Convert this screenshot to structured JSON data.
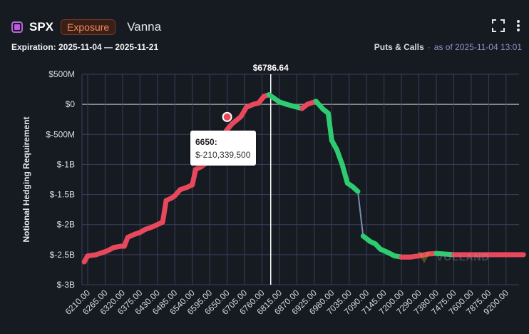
{
  "header": {
    "symbol": "SPX",
    "badge": "Exposure",
    "metric": "Vanna",
    "expiration": "Expiration: 2025-11-04 — 2025-11-21",
    "data_type": "Puts & Calls",
    "as_of": "as of 2025-11-04 13:01",
    "symbol_color": "#c055e8"
  },
  "icons": {
    "fullscreen": "fullscreen-icon",
    "menu": "more-vertical-icon"
  },
  "watermark": "VOLLAND",
  "tooltip": {
    "x_label": "6650:",
    "y_label": "$-210,339,500"
  },
  "chart_data": {
    "type": "line",
    "ylabel": "Notional Hedging Requirement",
    "xlabel": "",
    "ylim": [
      -3000000000,
      500000000
    ],
    "y_ticks": [
      500000000,
      0,
      -500000000,
      -1000000000,
      -1500000000,
      -2000000000,
      -2500000000,
      -3000000000
    ],
    "y_tick_labels": [
      "$500M",
      "$0",
      "$-500M",
      "$-1B",
      "$-1.5B",
      "$-2B",
      "$-2.5B",
      "$-3B"
    ],
    "x_tick_labels": [
      "6210.00",
      "6265.00",
      "6320.00",
      "6375.00",
      "6430.00",
      "6485.00",
      "6540.00",
      "6595.00",
      "6650.00",
      "6705.00",
      "6760.00",
      "6815.00",
      "6870.00",
      "6925.00",
      "6980.00",
      "7035.00",
      "7090.00",
      "7145.00",
      "7200.00",
      "7290.00",
      "7380.00",
      "7475.00",
      "7600.00",
      "7875.00",
      "9200.00"
    ],
    "spot": {
      "label": "$6786.64",
      "index": 10.5
    },
    "highlight": {
      "index": 8,
      "value": -210339500
    },
    "series": [
      {
        "name": "Vanna",
        "points": [
          [
            -0.2,
            -2620000000
          ],
          [
            0,
            -2520000000
          ],
          [
            0.5,
            -2500000000
          ],
          [
            0.9,
            -2460000000
          ],
          [
            1.1,
            -2440000000
          ],
          [
            1.5,
            -2380000000
          ],
          [
            1.9,
            -2360000000
          ],
          [
            2.1,
            -2360000000
          ],
          [
            2.3,
            -2210000000
          ],
          [
            2.7,
            -2160000000
          ],
          [
            3.0,
            -2130000000
          ],
          [
            3.3,
            -2080000000
          ],
          [
            3.7,
            -2040000000
          ],
          [
            4.0,
            -2000000000
          ],
          [
            4.3,
            -1960000000
          ],
          [
            4.5,
            -1600000000
          ],
          [
            4.8,
            -1560000000
          ],
          [
            5.0,
            -1520000000
          ],
          [
            5.3,
            -1420000000
          ],
          [
            5.7,
            -1380000000
          ],
          [
            6.0,
            -1340000000
          ],
          [
            6.2,
            -1080000000
          ],
          [
            6.5,
            -1040000000
          ],
          [
            6.8,
            -980000000
          ],
          [
            7.1,
            -700000000
          ],
          [
            7.4,
            -640000000
          ],
          [
            7.7,
            -550000000
          ],
          [
            8.0,
            -420000000
          ],
          [
            8.3,
            -320000000
          ],
          [
            8.6,
            -250000000
          ],
          [
            8.8,
            -200000000
          ],
          [
            9.1,
            -50000000
          ],
          [
            9.5,
            0
          ],
          [
            9.8,
            20000000
          ],
          [
            10.1,
            130000000
          ],
          [
            10.4,
            160000000
          ],
          [
            10.7,
            100000000
          ],
          [
            11.0,
            40000000
          ],
          [
            11.4,
            0
          ],
          [
            11.9,
            -40000000
          ],
          [
            12.3,
            -70000000
          ],
          [
            12.6,
            0
          ],
          [
            13.1,
            50000000
          ],
          [
            13.5,
            -80000000
          ],
          [
            13.8,
            -150000000
          ],
          [
            14.0,
            -600000000
          ],
          [
            14.3,
            -760000000
          ],
          [
            14.6,
            -1000000000
          ],
          [
            14.9,
            -1310000000
          ],
          [
            15.2,
            -1370000000
          ],
          [
            15.5,
            -1450000000
          ],
          [
            15.8,
            -2190000000
          ],
          [
            16.2,
            -2280000000
          ],
          [
            16.5,
            -2320000000
          ],
          [
            16.8,
            -2410000000
          ],
          [
            17.2,
            -2460000000
          ],
          [
            17.6,
            -2520000000
          ],
          [
            18.0,
            -2540000000
          ],
          [
            18.5,
            -2540000000
          ],
          [
            19.0,
            -2520000000
          ],
          [
            19.5,
            -2490000000
          ],
          [
            20.0,
            -2480000000
          ],
          [
            20.5,
            -2490000000
          ],
          [
            21.0,
            -2500000000
          ],
          [
            21.5,
            -2500000000
          ],
          [
            22.0,
            -2500000000
          ],
          [
            22.5,
            -2500000000
          ],
          [
            23.0,
            -2500000000
          ],
          [
            23.5,
            -2500000000
          ],
          [
            24.0,
            -2500000000
          ],
          [
            24.5,
            -2500000000
          ],
          [
            25.0,
            -2500000000
          ]
        ]
      }
    ],
    "colors": {
      "positive_trend": "#2ecc71",
      "negative_trend": "#e8485c",
      "line": "#7f8bb3",
      "grid": "#3a3f5c",
      "spot": "#ffffff"
    }
  }
}
